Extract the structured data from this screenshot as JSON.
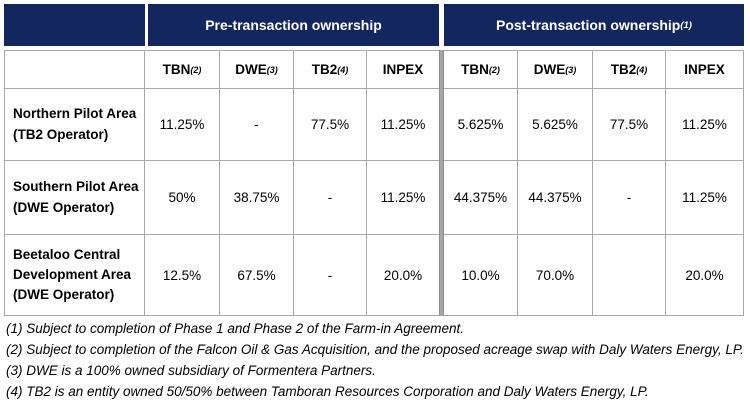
{
  "colors": {
    "header_bg": "#14265e",
    "header_text": "#ffffff",
    "border": "#a9a9a9",
    "section_divider": "#a6a6a6"
  },
  "table": {
    "pre_header": "Pre-transaction ownership",
    "post_header": "Post-transaction ownership",
    "post_header_sup": "(1)",
    "columns": [
      {
        "label": "TBN",
        "sup": "(2)"
      },
      {
        "label": "DWE",
        "sup": "(3)"
      },
      {
        "label": "TB2",
        "sup": "(4)"
      },
      {
        "label": "INPEX",
        "sup": ""
      }
    ],
    "rows": [
      {
        "area": "Northern Pilot Area",
        "operator": "(TB2 Operator)",
        "pre": [
          "11.25%",
          "-",
          "77.5%",
          "11.25%"
        ],
        "post": [
          "5.625%",
          "5.625%",
          "77.5%",
          "11.25%"
        ]
      },
      {
        "area": "Southern Pilot Area",
        "operator": "(DWE Operator)",
        "pre": [
          "50%",
          "38.75%",
          "-",
          "11.25%"
        ],
        "post": [
          "44.375%",
          "44.375%",
          "-",
          "11.25%"
        ]
      },
      {
        "area": "Beetaloo Central Development Area",
        "operator": "(DWE Operator)",
        "pre": [
          "12.5%",
          "67.5%",
          "-",
          "20.0%"
        ],
        "post": [
          "10.0%",
          "70.0%",
          "",
          "20.0%"
        ]
      }
    ]
  },
  "footnotes": [
    "(1) Subject to completion of Phase 1 and Phase 2 of the Farm-in Agreement.",
    "(2) Subject to completion of the Falcon Oil & Gas Acquisition, and the proposed acreage swap with Daly Waters Energy, LP.",
    "(3) DWE is a 100% owned subsidiary of Formentera Partners.",
    "(4) TB2 is an entity owned 50/50% between Tamboran Resources Corporation and Daly Waters Energy, LP."
  ]
}
